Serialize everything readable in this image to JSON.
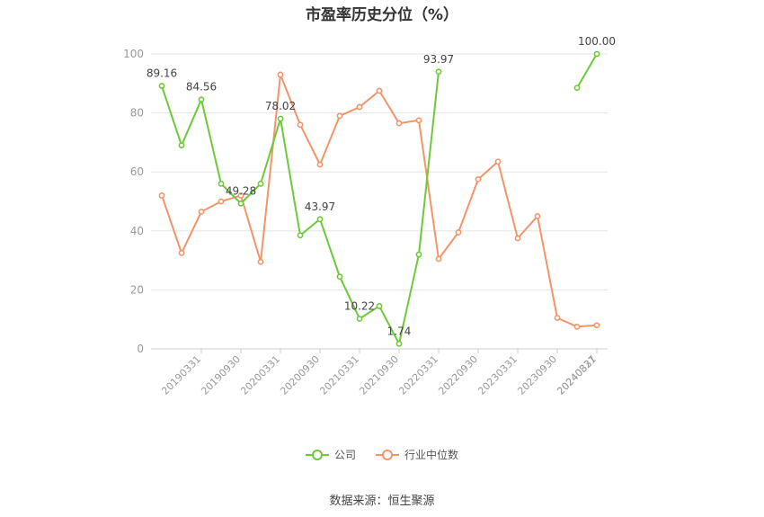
{
  "chart_data": {
    "type": "line",
    "title": "市盈率历史分位（%）",
    "source": "数据来源：恒生聚源",
    "ylim": [
      0,
      100
    ],
    "yticks": [
      0,
      20,
      40,
      60,
      80,
      100
    ],
    "grid": true,
    "legend_position": "bottom",
    "x_tick_labels": [
      "20190331",
      "20190930",
      "20200331",
      "20200930",
      "20210331",
      "20210930",
      "20220331",
      "20220930",
      "20230331",
      "20230930",
      "20240331",
      "20240827"
    ],
    "series": [
      {
        "name": "公司",
        "color": "#6dc93a",
        "values": [
          89.16,
          69.0,
          84.56,
          56.0,
          49.28,
          56.0,
          78.02,
          38.5,
          43.97,
          24.5,
          10.22,
          14.5,
          1.74,
          32.0,
          93.97,
          null,
          null,
          null,
          null,
          null,
          null,
          88.5,
          100.0
        ],
        "labels": [
          "89.16",
          null,
          "84.56",
          null,
          "49.28",
          null,
          "78.02",
          null,
          "43.97",
          null,
          "10.22",
          null,
          "1.74",
          null,
          "93.97",
          null,
          null,
          null,
          null,
          null,
          null,
          null,
          "100.00"
        ]
      },
      {
        "name": "行业中位数",
        "color": "#f4946a",
        "values": [
          52.0,
          32.5,
          46.5,
          50.0,
          52.0,
          29.5,
          93.0,
          76.0,
          62.5,
          79.0,
          82.0,
          87.5,
          76.5,
          77.5,
          30.5,
          39.5,
          57.5,
          63.5,
          37.5,
          45.0,
          10.5,
          7.5,
          8.0
        ]
      }
    ]
  }
}
